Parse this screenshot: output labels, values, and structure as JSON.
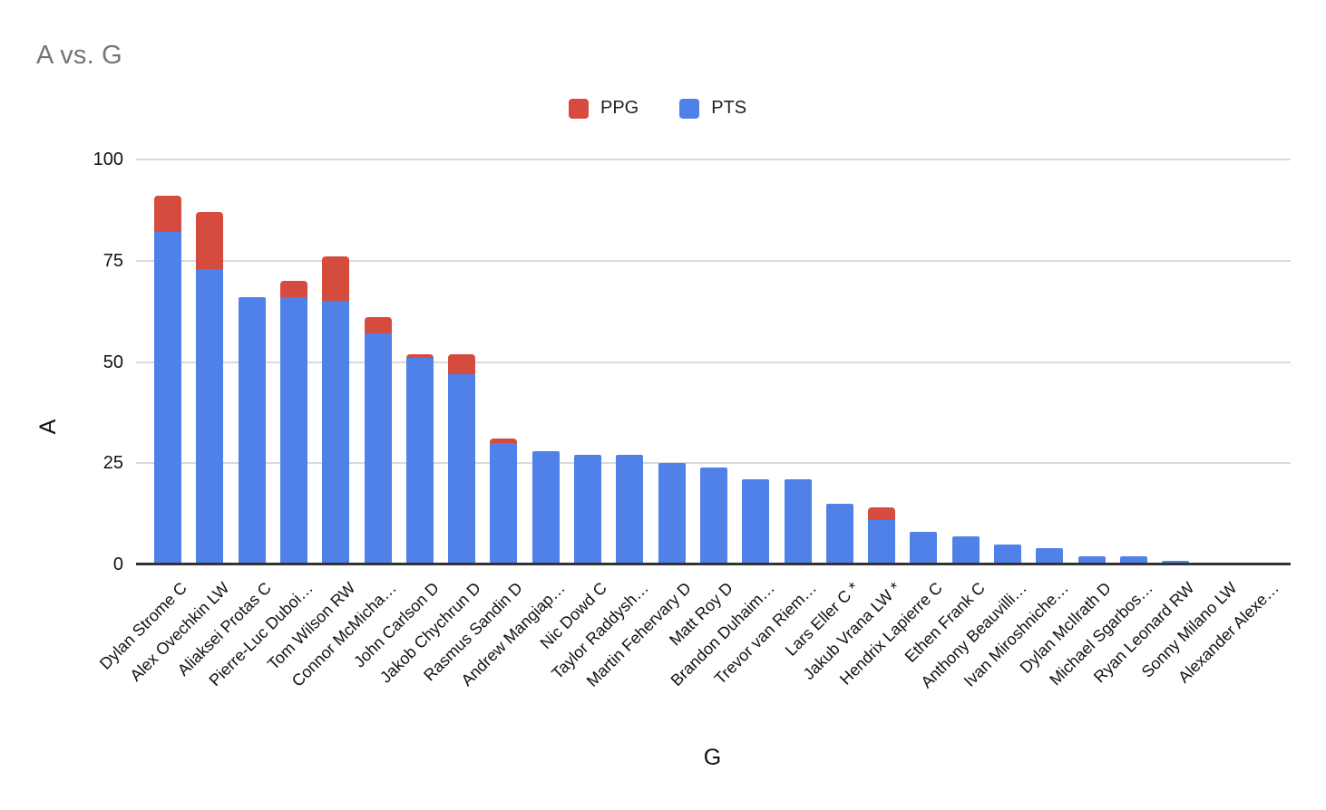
{
  "chart_data": {
    "type": "bar",
    "stacked": true,
    "title": "A vs. G",
    "xlabel": "G",
    "ylabel": "A",
    "ylim": [
      0,
      100
    ],
    "yticks": [
      0,
      25,
      50,
      75,
      100
    ],
    "grid": true,
    "legend_position": "top",
    "categories": [
      "Dylan Strome C",
      "Alex Ovechkin LW",
      "Aliaksei Protas C",
      "Pierre-Luc Duboi…",
      "Tom Wilson RW",
      "Connor McMicha…",
      "John Carlson D",
      "Jakob Chychrun D",
      "Rasmus Sandin D",
      "Andrew Mangiap…",
      "Nic Dowd C",
      "Taylor Raddysh…",
      "Martin Fehervary D",
      "Matt Roy D",
      "Brandon Duhaim…",
      "Trevor van Riem…",
      "Lars Eller C *",
      "Jakub Vrana LW *",
      "Hendrix Lapierre C",
      "Ethen Frank C",
      "Anthony Beauvilli…",
      "Ivan Miroshniche…",
      "Dylan McIlrath D",
      "Michael Sgarbos…",
      "Ryan Leonard RW",
      "Sonny Milano LW",
      "Alexander Alexe…"
    ],
    "series": [
      {
        "name": "PTS",
        "color": "#4f81e8",
        "values": [
          82,
          73,
          66,
          66,
          65,
          57,
          51,
          47,
          30,
          28,
          27,
          27,
          25,
          24,
          21,
          21,
          15,
          11,
          8,
          7,
          5,
          4,
          2,
          2,
          1,
          0,
          0
        ]
      },
      {
        "name": "PPG",
        "color": "#d54c3e",
        "values": [
          9,
          14,
          0,
          4,
          11,
          4,
          1,
          5,
          1,
          0,
          0,
          0,
          0,
          0,
          0,
          0,
          0,
          3,
          0,
          0,
          0,
          0,
          0,
          0,
          0,
          0,
          0
        ]
      }
    ]
  },
  "legend": {
    "items": [
      {
        "label": "PPG",
        "color": "#d54c3e"
      },
      {
        "label": "PTS",
        "color": "#4f81e8"
      }
    ]
  },
  "colors": {
    "title_text": "#757575",
    "label_text": "#111111",
    "gridline": "#dadada",
    "axis_line": "#333333",
    "background": "#ffffff"
  }
}
